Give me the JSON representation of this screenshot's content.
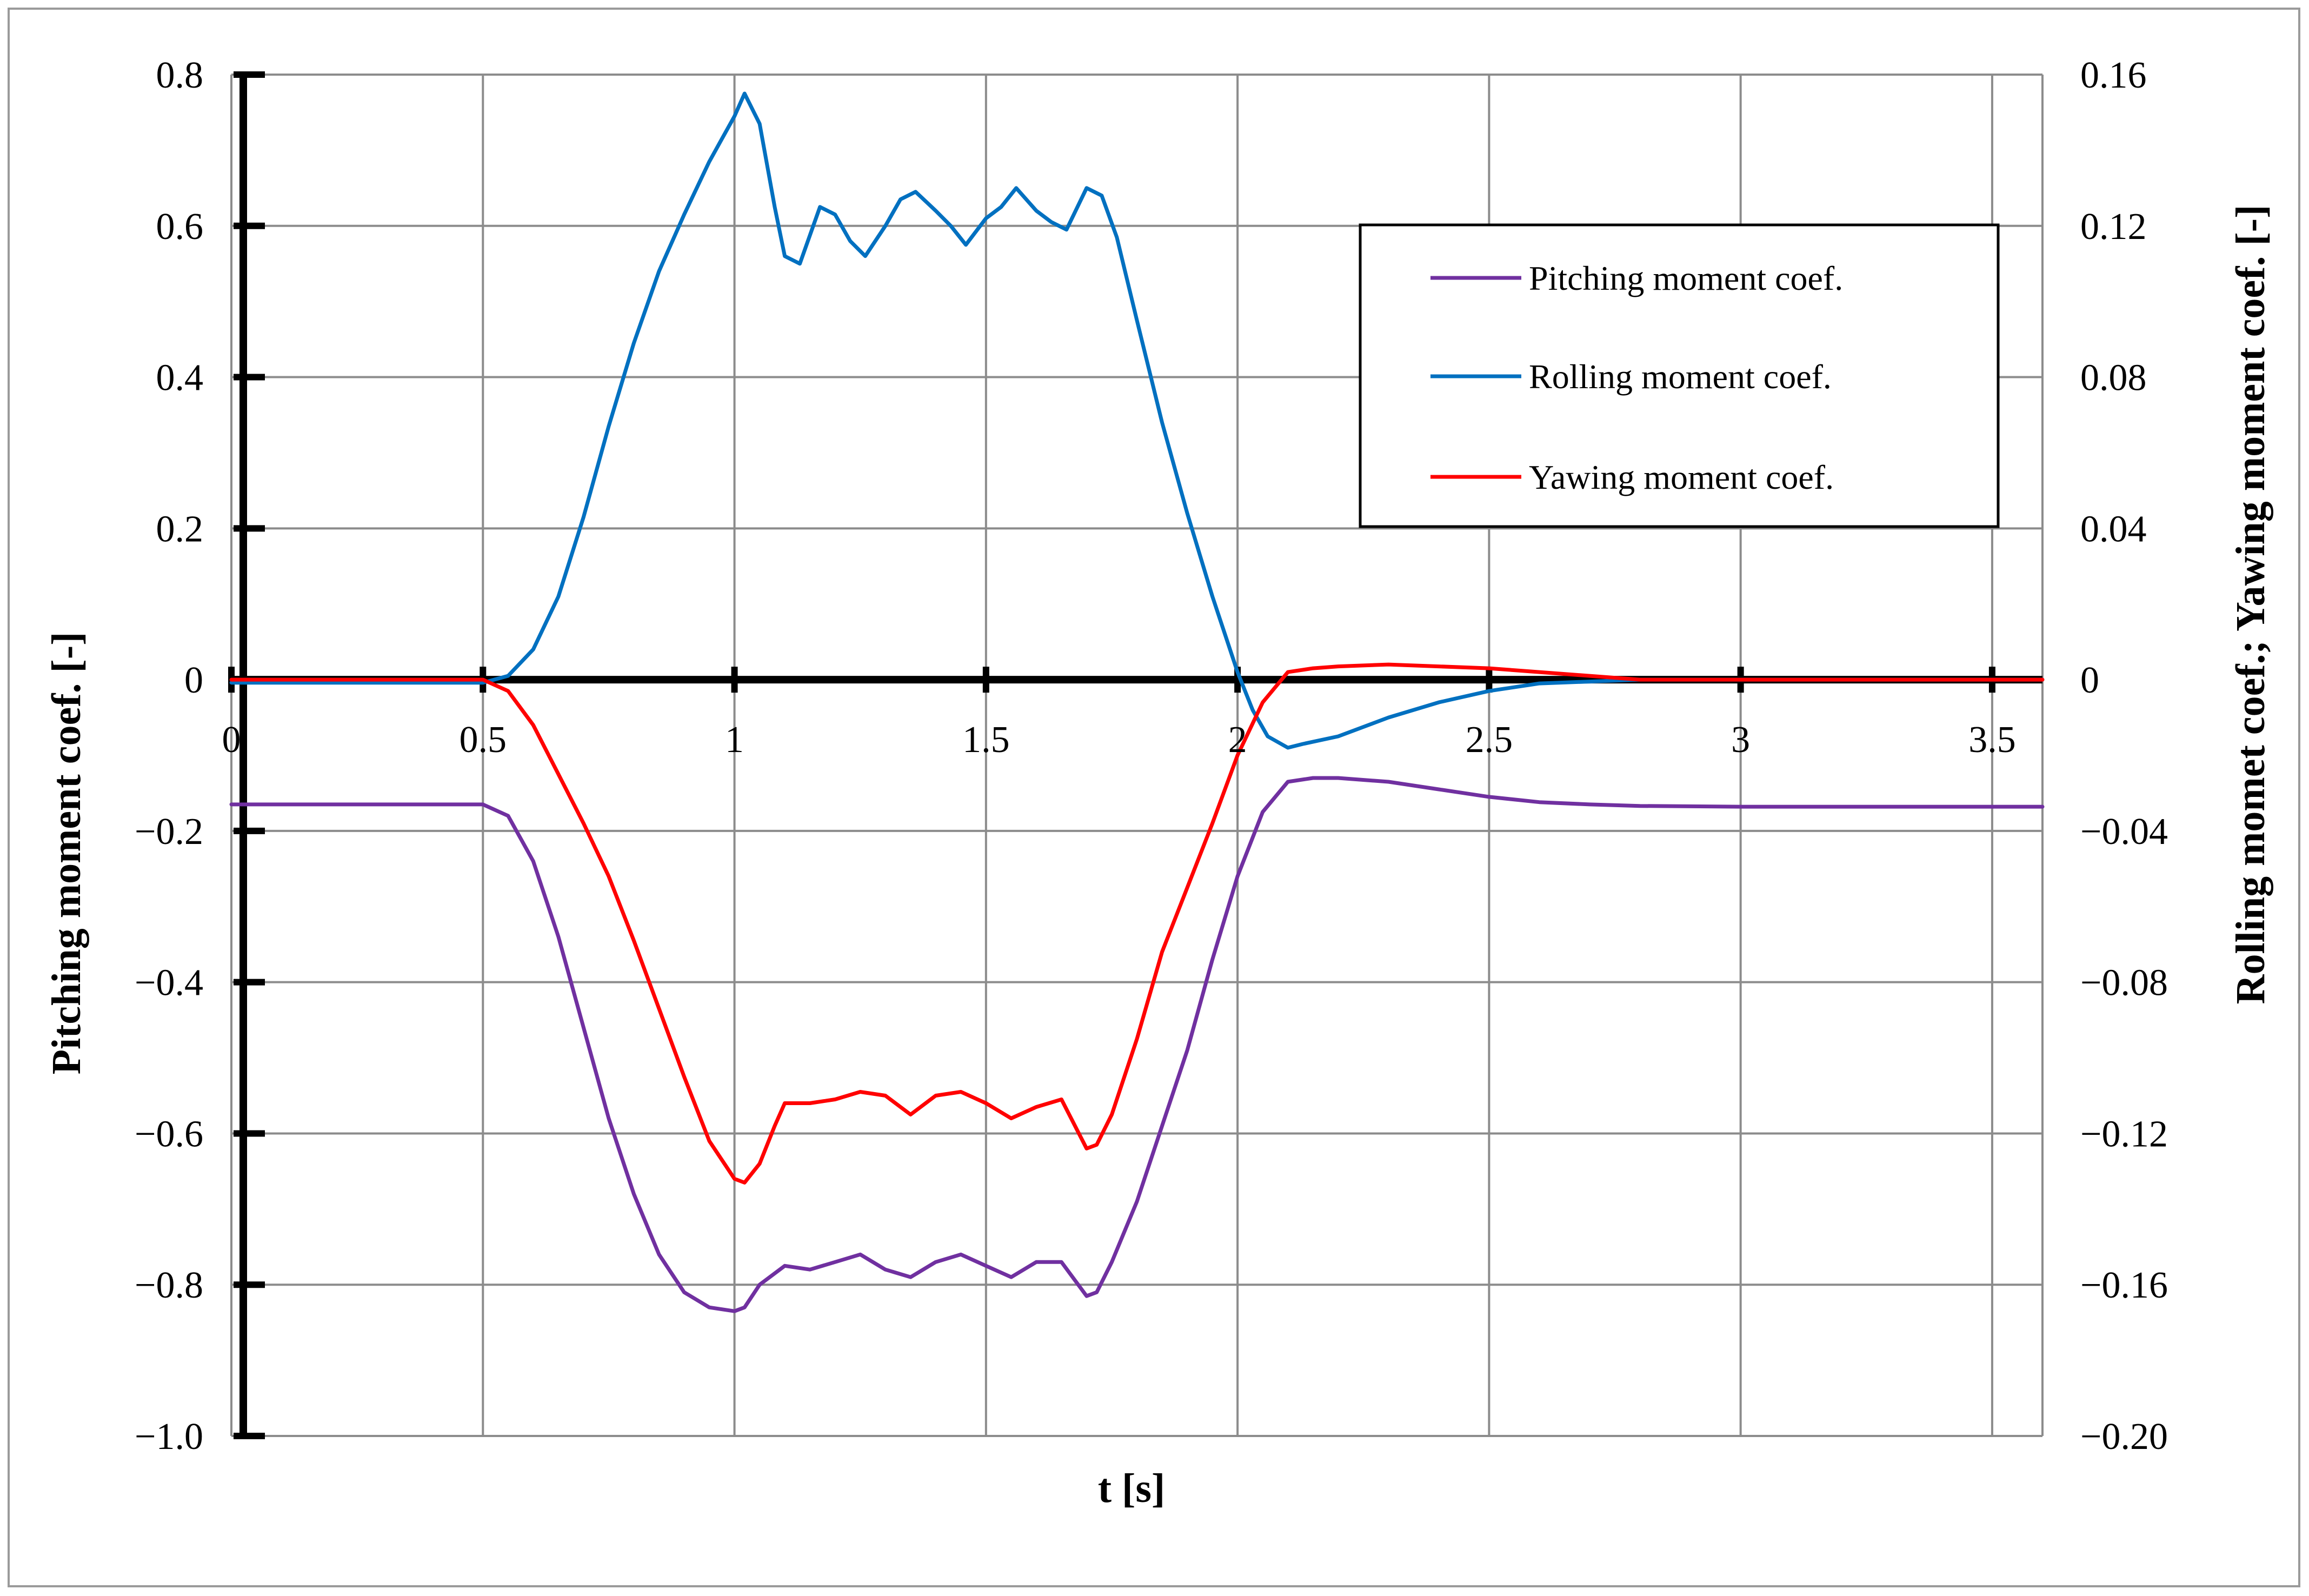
{
  "chart_data": {
    "type": "line",
    "xlabel": "t [s]",
    "ylabel_left": "Pitching moment coef. [-]",
    "ylabel_right": "Rolling momet coef.; Yawing moment coef. [-]",
    "xlim": [
      0,
      3.6
    ],
    "ylim_left": [
      -1.0,
      0.8
    ],
    "ylim_right": [
      -0.2,
      0.16
    ],
    "x_ticks": [
      {
        "value": 0,
        "label": "0"
      },
      {
        "value": 0.5,
        "label": "0.5"
      },
      {
        "value": 1,
        "label": "1"
      },
      {
        "value": 1.5,
        "label": "1.5"
      },
      {
        "value": 2,
        "label": "2"
      },
      {
        "value": 2.5,
        "label": "2.5"
      },
      {
        "value": 3,
        "label": "3"
      },
      {
        "value": 3.5,
        "label": "3.5"
      }
    ],
    "y_ticks_left": [
      {
        "value": 0.8,
        "label": "0.8"
      },
      {
        "value": 0.6,
        "label": "0.6"
      },
      {
        "value": 0.4,
        "label": "0.4"
      },
      {
        "value": 0.2,
        "label": "0.2"
      },
      {
        "value": 0,
        "label": "0"
      },
      {
        "value": -0.2,
        "label": "−0.2"
      },
      {
        "value": -0.4,
        "label": "−0.4"
      },
      {
        "value": -0.6,
        "label": "−0.6"
      },
      {
        "value": -0.8,
        "label": "−0.8"
      },
      {
        "value": -1.0,
        "label": "−1.0"
      }
    ],
    "y_ticks_right": [
      {
        "value": 0.16,
        "label": "0.16"
      },
      {
        "value": 0.12,
        "label": "0.12"
      },
      {
        "value": 0.08,
        "label": "0.08"
      },
      {
        "value": 0.04,
        "label": "0.04"
      },
      {
        "value": 0,
        "label": "0"
      },
      {
        "value": -0.04,
        "label": "−0.04"
      },
      {
        "value": -0.08,
        "label": "−0.08"
      },
      {
        "value": -0.12,
        "label": "−0.12"
      },
      {
        "value": -0.16,
        "label": "−0.16"
      },
      {
        "value": -0.2,
        "label": "−0.20"
      }
    ],
    "grid": true,
    "legend_position": "top-right",
    "series": [
      {
        "name": "Pitching moment coef.",
        "axis": "left",
        "color": "#7030A0",
        "x": [
          0,
          0.45,
          0.5,
          0.55,
          0.6,
          0.65,
          0.7,
          0.75,
          0.8,
          0.85,
          0.9,
          0.95,
          1.0,
          1.02,
          1.05,
          1.1,
          1.15,
          1.2,
          1.25,
          1.3,
          1.35,
          1.4,
          1.45,
          1.5,
          1.55,
          1.6,
          1.65,
          1.7,
          1.72,
          1.75,
          1.8,
          1.85,
          1.9,
          1.95,
          2.0,
          2.05,
          2.1,
          2.15,
          2.2,
          2.3,
          2.4,
          2.5,
          2.6,
          2.7,
          2.8,
          3.0,
          3.2,
          3.6
        ],
        "values": [
          -0.165,
          -0.165,
          -0.165,
          -0.18,
          -0.24,
          -0.34,
          -0.46,
          -0.58,
          -0.68,
          -0.76,
          -0.81,
          -0.83,
          -0.835,
          -0.83,
          -0.8,
          -0.775,
          -0.78,
          -0.77,
          -0.76,
          -0.78,
          -0.79,
          -0.77,
          -0.76,
          -0.775,
          -0.79,
          -0.77,
          -0.77,
          -0.815,
          -0.81,
          -0.77,
          -0.69,
          -0.59,
          -0.49,
          -0.37,
          -0.26,
          -0.175,
          -0.135,
          -0.13,
          -0.13,
          -0.135,
          -0.145,
          -0.155,
          -0.162,
          -0.165,
          -0.167,
          -0.168,
          -0.168,
          -0.168
        ]
      },
      {
        "name": "Rolling moment coef.",
        "axis": "right",
        "color": "#0070C0",
        "x": [
          0,
          0.5,
          0.55,
          0.6,
          0.65,
          0.7,
          0.75,
          0.8,
          0.85,
          0.9,
          0.95,
          1.0,
          1.02,
          1.05,
          1.08,
          1.1,
          1.13,
          1.17,
          1.2,
          1.23,
          1.26,
          1.3,
          1.33,
          1.36,
          1.4,
          1.43,
          1.46,
          1.5,
          1.53,
          1.56,
          1.6,
          1.63,
          1.66,
          1.7,
          1.73,
          1.76,
          1.8,
          1.85,
          1.9,
          1.95,
          2.0,
          2.03,
          2.06,
          2.1,
          2.13,
          2.2,
          2.3,
          2.4,
          2.5,
          2.6,
          2.8,
          3.0,
          3.6
        ],
        "values": [
          -0.0008,
          -0.0008,
          0.001,
          0.008,
          0.022,
          0.043,
          0.067,
          0.089,
          0.108,
          0.123,
          0.137,
          0.149,
          0.155,
          0.147,
          0.125,
          0.112,
          0.11,
          0.125,
          0.123,
          0.116,
          0.112,
          0.12,
          0.127,
          0.129,
          0.124,
          0.12,
          0.115,
          0.122,
          0.125,
          0.13,
          0.124,
          0.121,
          0.119,
          0.13,
          0.128,
          0.117,
          0.095,
          0.068,
          0.044,
          0.022,
          0.002,
          -0.008,
          -0.015,
          -0.018,
          -0.017,
          -0.015,
          -0.01,
          -0.006,
          -0.003,
          -0.001,
          0,
          0,
          0
        ]
      },
      {
        "name": "Yawing moment coef.",
        "axis": "right",
        "color": "#FF0000",
        "x": [
          0,
          0.5,
          0.55,
          0.6,
          0.65,
          0.7,
          0.75,
          0.8,
          0.85,
          0.9,
          0.95,
          1.0,
          1.02,
          1.05,
          1.08,
          1.1,
          1.15,
          1.2,
          1.25,
          1.3,
          1.35,
          1.4,
          1.45,
          1.5,
          1.55,
          1.6,
          1.65,
          1.7,
          1.72,
          1.75,
          1.8,
          1.85,
          1.9,
          1.95,
          2.0,
          2.05,
          2.1,
          2.15,
          2.2,
          2.3,
          2.4,
          2.5,
          2.6,
          2.7,
          2.8,
          3.0,
          3.6
        ],
        "values": [
          0,
          0,
          -0.003,
          -0.012,
          -0.025,
          -0.038,
          -0.052,
          -0.069,
          -0.087,
          -0.105,
          -0.122,
          -0.132,
          -0.133,
          -0.128,
          -0.118,
          -0.112,
          -0.112,
          -0.111,
          -0.109,
          -0.11,
          -0.115,
          -0.11,
          -0.109,
          -0.112,
          -0.116,
          -0.113,
          -0.111,
          -0.124,
          -0.123,
          -0.115,
          -0.095,
          -0.072,
          -0.055,
          -0.038,
          -0.02,
          -0.006,
          0.002,
          0.003,
          0.0035,
          0.004,
          0.0035,
          0.003,
          0.002,
          0.001,
          0,
          0,
          0
        ]
      }
    ]
  }
}
